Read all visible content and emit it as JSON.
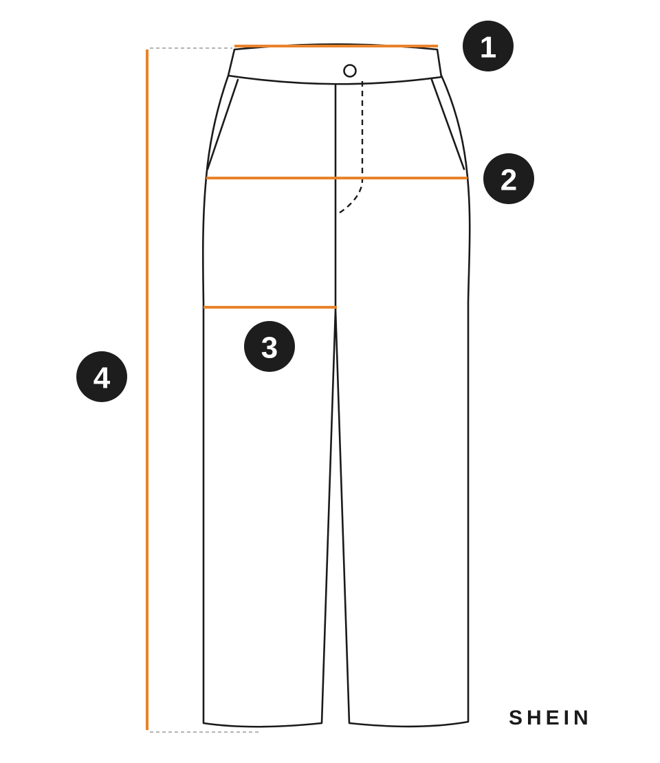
{
  "colors": {
    "measurement_line": "#e8832a",
    "outline": "#1a1a1a",
    "badge": "#1d1d1d"
  },
  "measurements": [
    {
      "number": "1",
      "part": "waist"
    },
    {
      "number": "2",
      "part": "hip"
    },
    {
      "number": "3",
      "part": "thigh"
    },
    {
      "number": "4",
      "part": "length"
    }
  ],
  "brand": "SHEIN"
}
